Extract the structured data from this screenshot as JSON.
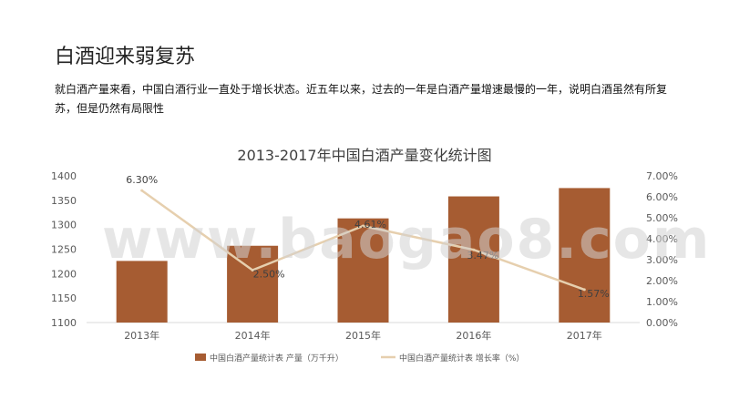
{
  "page": {
    "title": "白酒迎来弱复苏",
    "subtitle": "就白酒产量来看，中国白酒行业一直处于增长状态。近五年以来，过去的一年是白酒产量增速最慢的一年，说明白酒虽然有所复苏，但是仍然有局限性"
  },
  "watermark": "www.baogao8.com",
  "colors": {
    "bar": "#a65c32",
    "line": "#e6cfae",
    "axis": "#d9d9d9",
    "tick": "#595959",
    "title": "#404040"
  },
  "chart_data": {
    "type": "bar",
    "title": "2013-2017年中国白酒产量变化统计图",
    "categories": [
      "2013年",
      "2014年",
      "2015年",
      "2016年",
      "2017年"
    ],
    "series": [
      {
        "name": "中国白酒产量统计表 产量（万千升）",
        "type": "bar",
        "axis": "left",
        "values": [
          1226,
          1257,
          1313,
          1358,
          1375
        ]
      },
      {
        "name": "中国白酒产量统计表 增长率（%）",
        "type": "line",
        "axis": "right",
        "values": [
          6.3,
          2.5,
          4.61,
          3.47,
          1.57
        ],
        "labels": [
          "6.30%",
          "2.50%",
          "4.61%",
          "3.47%",
          "1.57%"
        ]
      }
    ],
    "y_left": {
      "min": 1100,
      "max": 1400,
      "ticks": [
        "1100",
        "1150",
        "1200",
        "1250",
        "1300",
        "1350",
        "1400"
      ]
    },
    "y_right": {
      "min": 0,
      "max": 7,
      "ticks": [
        "0.00%",
        "1.00%",
        "2.00%",
        "3.00%",
        "4.00%",
        "5.00%",
        "6.00%",
        "7.00%"
      ]
    },
    "legend": "bottom",
    "grid": false
  }
}
